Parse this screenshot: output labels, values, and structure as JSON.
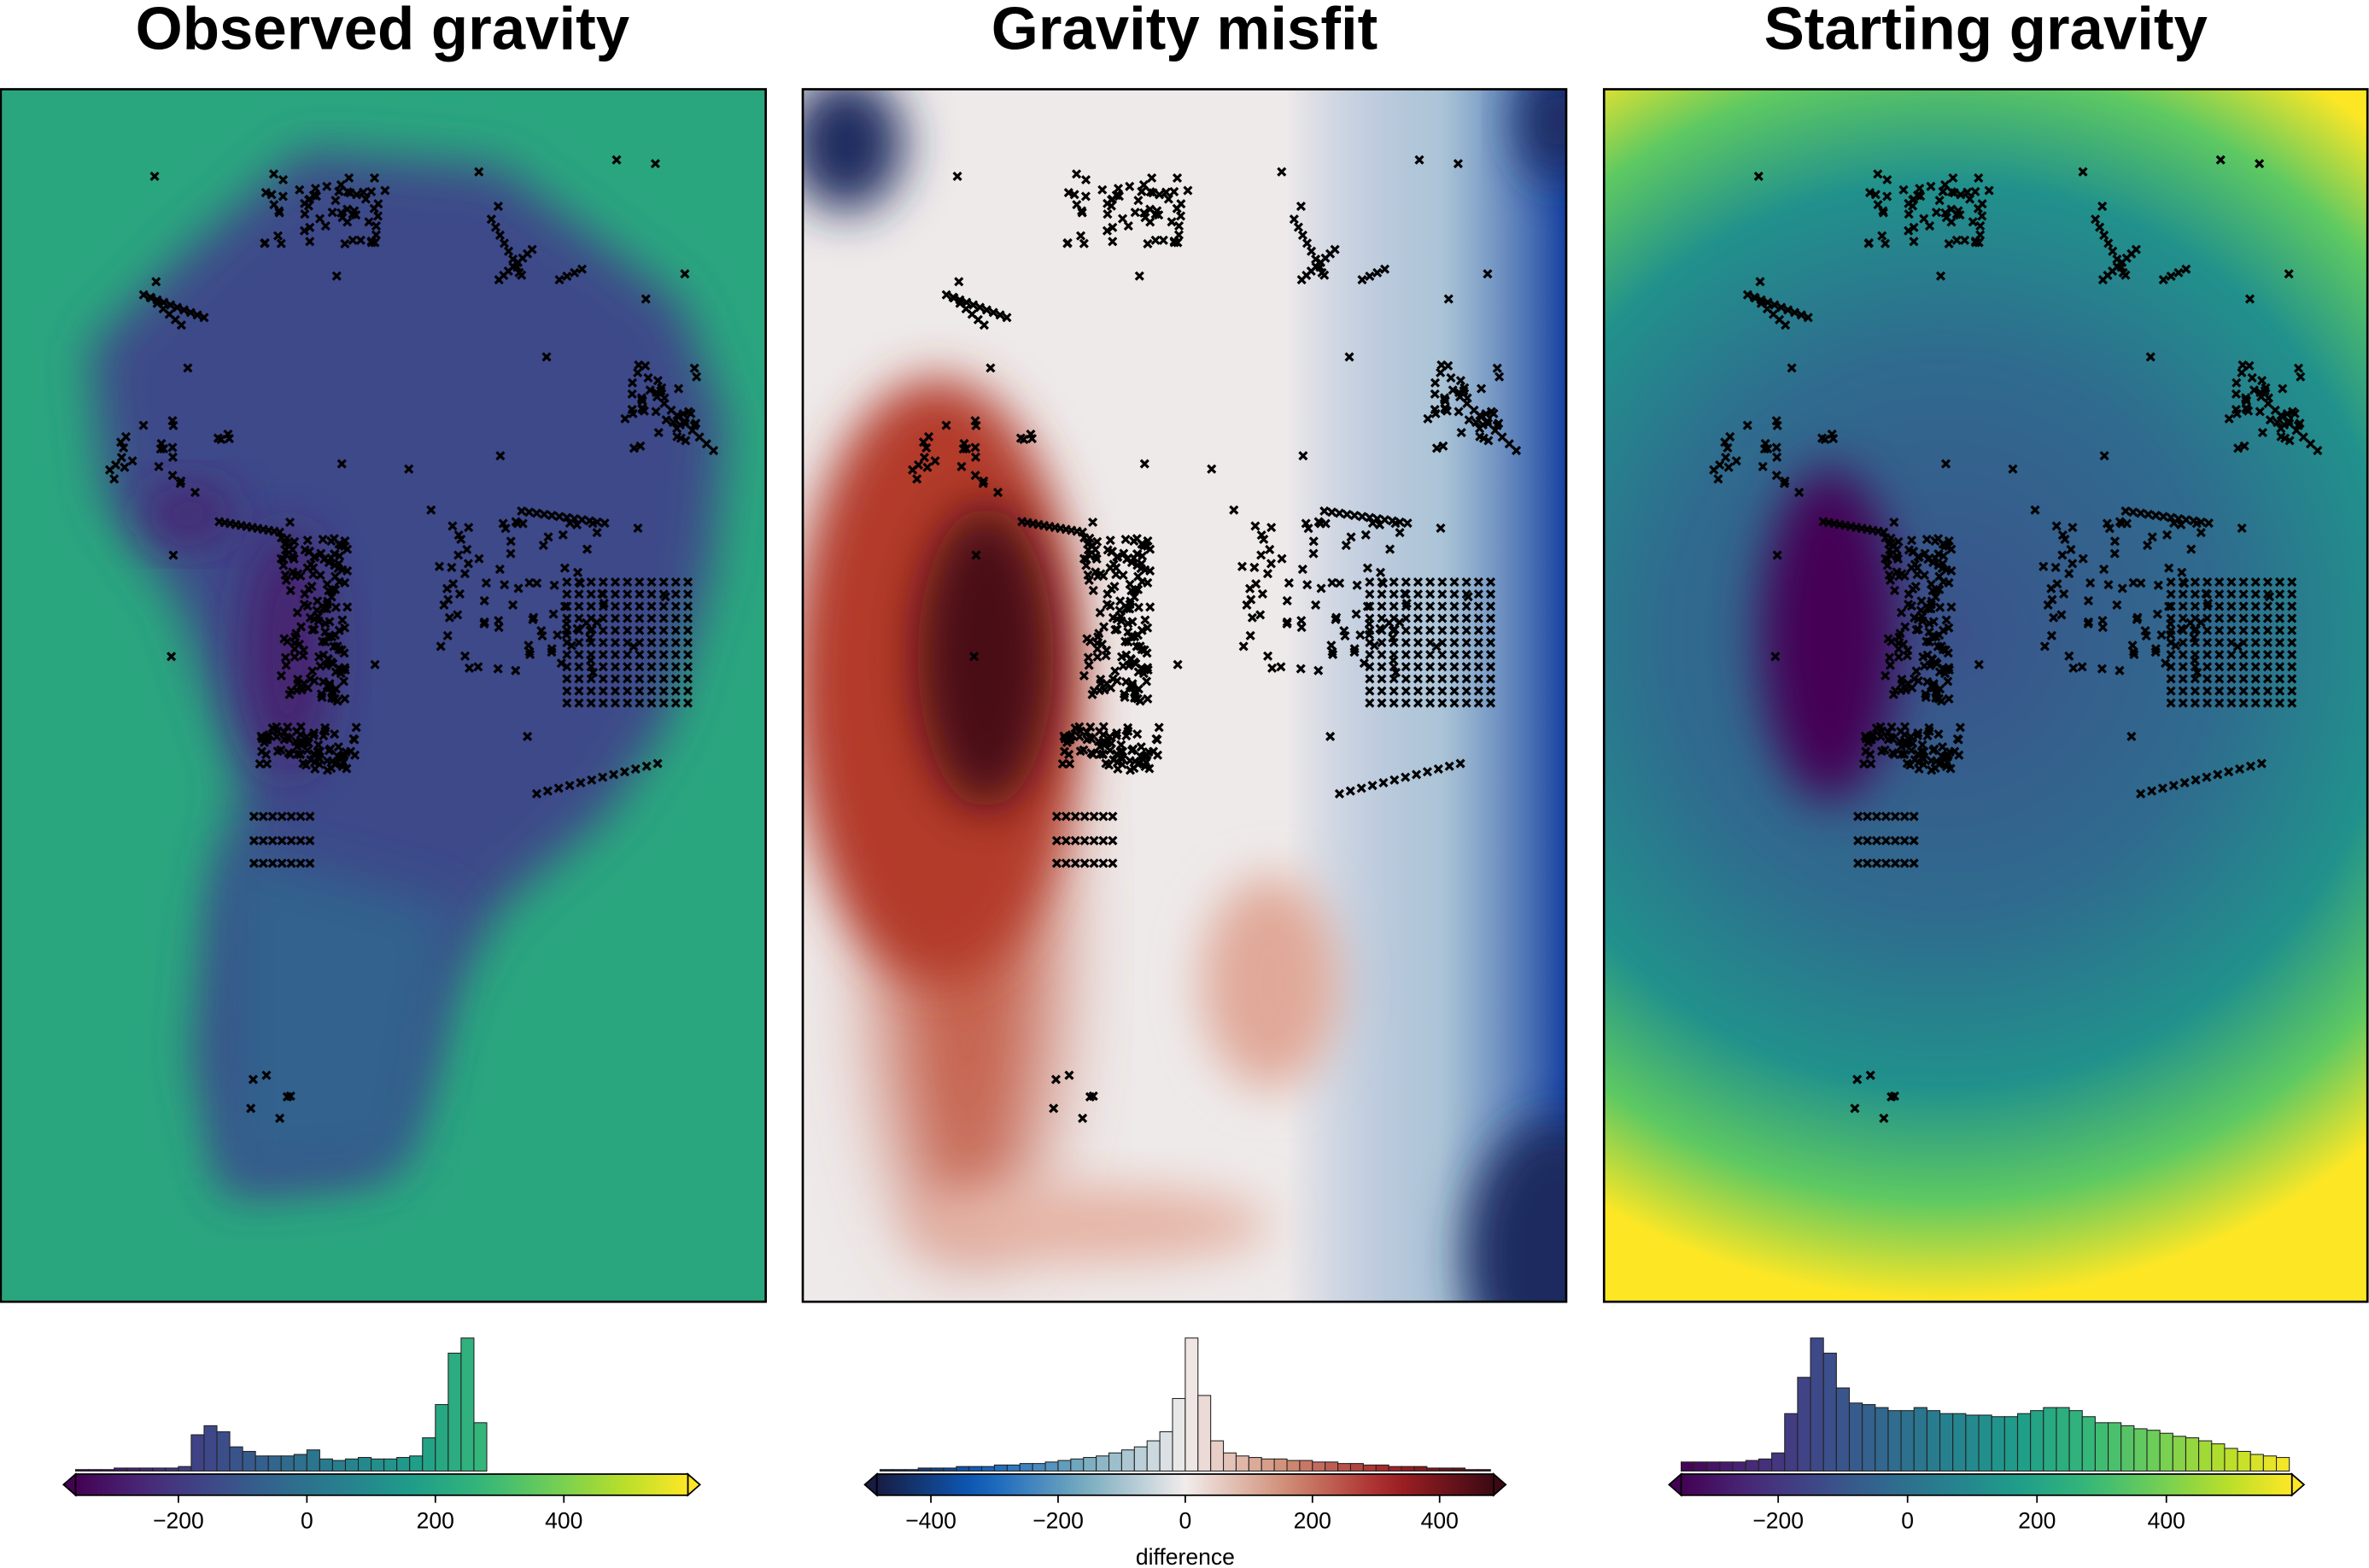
{
  "chart_data": [
    {
      "type": "histogram",
      "title": "Observed gravity",
      "colormap": "viridis",
      "bins": [
        -360,
        -340,
        -320,
        -300,
        -280,
        -260,
        -240,
        -220,
        -200,
        -180,
        -160,
        -140,
        -120,
        -100,
        -80,
        -60,
        -40,
        -20,
        0,
        20,
        40,
        60,
        80,
        100,
        120,
        140,
        160,
        180,
        200,
        220,
        240,
        260,
        280
      ],
      "counts": [
        1,
        1,
        1,
        2,
        2,
        2,
        2,
        2,
        3,
        24,
        30,
        26,
        16,
        13,
        10,
        10,
        10,
        11,
        14,
        8,
        7,
        8,
        9,
        8,
        8,
        9,
        10,
        22,
        44,
        78,
        88,
        32
      ],
      "xlim": [
        -360,
        593
      ],
      "xticks": [
        {
          "value": -200,
          "label": "−200"
        },
        0,
        200,
        400
      ]
    },
    {
      "type": "histogram",
      "title": "Gravity misfit",
      "colormap": "balance",
      "xlabel": "difference",
      "bins": [
        -480,
        -460,
        -440,
        -420,
        -400,
        -380,
        -360,
        -340,
        -320,
        -300,
        -280,
        -260,
        -240,
        -220,
        -200,
        -180,
        -160,
        -140,
        -120,
        -100,
        -80,
        -60,
        -40,
        -20,
        0,
        20,
        40,
        60,
        80,
        100,
        120,
        140,
        160,
        180,
        200,
        220,
        240,
        260,
        280,
        300,
        320,
        340,
        360,
        380,
        400,
        420,
        440,
        460,
        480
      ],
      "counts": [
        1,
        1,
        1,
        2,
        2,
        2,
        3,
        3,
        3,
        4,
        4,
        5,
        5,
        6,
        7,
        8,
        9,
        10,
        12,
        14,
        16,
        20,
        26,
        48,
        88,
        50,
        20,
        12,
        10,
        9,
        8,
        8,
        7,
        7,
        6,
        6,
        5,
        5,
        4,
        4,
        3,
        3,
        3,
        2,
        2,
        2,
        1,
        1
      ],
      "xlim": [
        -485,
        485
      ],
      "xticks": [
        {
          "value": -400,
          "label": "−400"
        },
        {
          "value": -200,
          "label": "−200"
        },
        0,
        200,
        400
      ]
    },
    {
      "type": "histogram",
      "title": "Starting gravity",
      "colormap": "viridis",
      "bins": [
        -350,
        -330,
        -310,
        -290,
        -270,
        -250,
        -230,
        -210,
        -190,
        -170,
        -150,
        -130,
        -110,
        -90,
        -70,
        -50,
        -30,
        -10,
        10,
        30,
        50,
        70,
        90,
        110,
        130,
        150,
        170,
        190,
        210,
        230,
        250,
        270,
        290,
        310,
        330,
        350,
        370,
        390,
        410,
        430,
        450,
        470,
        490,
        510,
        530,
        550,
        570,
        590
      ],
      "counts": [
        6,
        6,
        6,
        6,
        6,
        7,
        8,
        12,
        38,
        62,
        88,
        78,
        55,
        45,
        44,
        42,
        40,
        40,
        42,
        40,
        38,
        38,
        37,
        37,
        36,
        36,
        38,
        40,
        42,
        42,
        40,
        36,
        32,
        32,
        30,
        28,
        27,
        25,
        23,
        22,
        20,
        18,
        15,
        13,
        11,
        10,
        9
      ],
      "xlim": [
        -350,
        594
      ],
      "xticks": [
        {
          "value": -200,
          "label": "−200"
        },
        0,
        200,
        400
      ]
    }
  ]
}
